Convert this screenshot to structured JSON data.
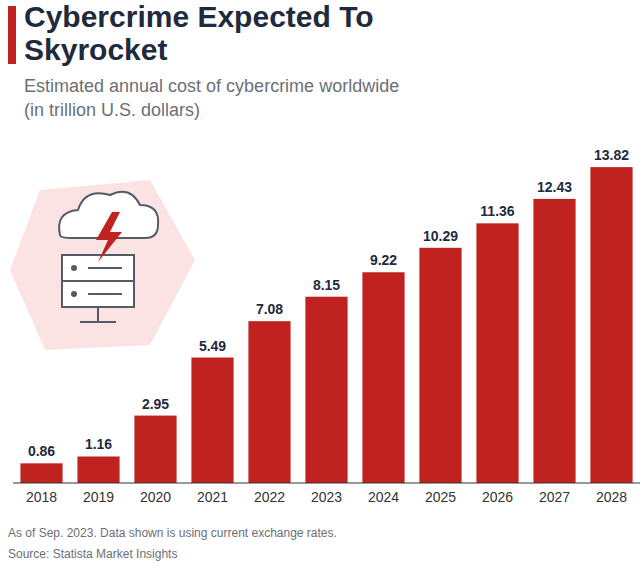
{
  "chart_data": {
    "type": "bar",
    "title": "Cybercrime Expected To Skyrocket",
    "subtitle": "Estimated annual cost of cybercrime worldwide (in trillion U.S. dollars)",
    "categories": [
      "2018",
      "2019",
      "2020",
      "2021",
      "2022",
      "2023",
      "2024",
      "2025",
      "2026",
      "2027",
      "2028"
    ],
    "values": [
      0.86,
      1.16,
      2.95,
      5.49,
      7.08,
      8.15,
      9.22,
      10.29,
      11.36,
      12.43,
      13.82
    ],
    "color": "#c0221f",
    "ylim": [
      0,
      14
    ],
    "data_labels": true,
    "tick_labels": "x",
    "grid": false,
    "note": "As of Sep. 2023. Data shown is using current exchange rates.",
    "source": "Source: Statista Market Insights"
  }
}
